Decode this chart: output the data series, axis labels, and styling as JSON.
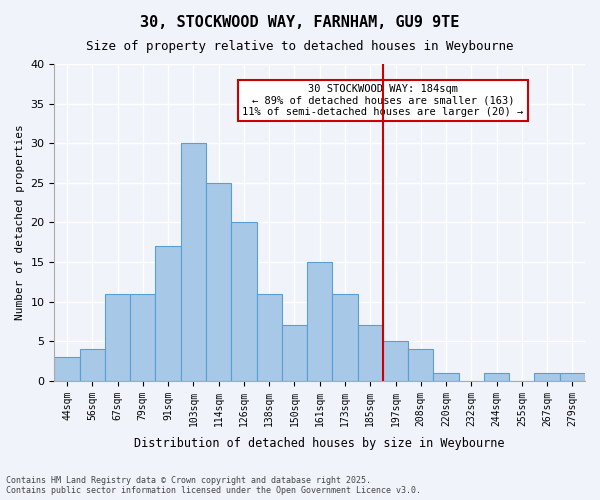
{
  "title": "30, STOCKWOOD WAY, FARNHAM, GU9 9TE",
  "subtitle": "Size of property relative to detached houses in Weybourne",
  "xlabel": "Distribution of detached houses by size in Weybourne",
  "ylabel": "Number of detached properties",
  "bin_labels": [
    "44sqm",
    "56sqm",
    "67sqm",
    "79sqm",
    "91sqm",
    "103sqm",
    "114sqm",
    "126sqm",
    "138sqm",
    "150sqm",
    "161sqm",
    "173sqm",
    "185sqm",
    "197sqm",
    "208sqm",
    "220sqm",
    "232sqm",
    "244sqm",
    "255sqm",
    "267sqm",
    "279sqm"
  ],
  "bar_heights": [
    3,
    4,
    11,
    11,
    17,
    30,
    25,
    20,
    11,
    7,
    15,
    11,
    7,
    5,
    4,
    1,
    0,
    1,
    0,
    1,
    1
  ],
  "bar_color": "#a8c8e8",
  "bar_edge_color": "#5a9fd4",
  "vline_x": 12,
  "vline_color": "#cc0000",
  "annotation_text": "30 STOCKWOOD WAY: 184sqm\n← 89% of detached houses are smaller (163)\n11% of semi-detached houses are larger (20) →",
  "annotation_box_color": "#ffffff",
  "annotation_box_edgecolor": "#cc0000",
  "ylim": [
    0,
    40
  ],
  "yticks": [
    0,
    5,
    10,
    15,
    20,
    25,
    30,
    35,
    40
  ],
  "background_color": "#f0f4fa",
  "grid_color": "#ffffff",
  "footer": "Contains HM Land Registry data © Crown copyright and database right 2025.\nContains public sector information licensed under the Open Government Licence v3.0."
}
